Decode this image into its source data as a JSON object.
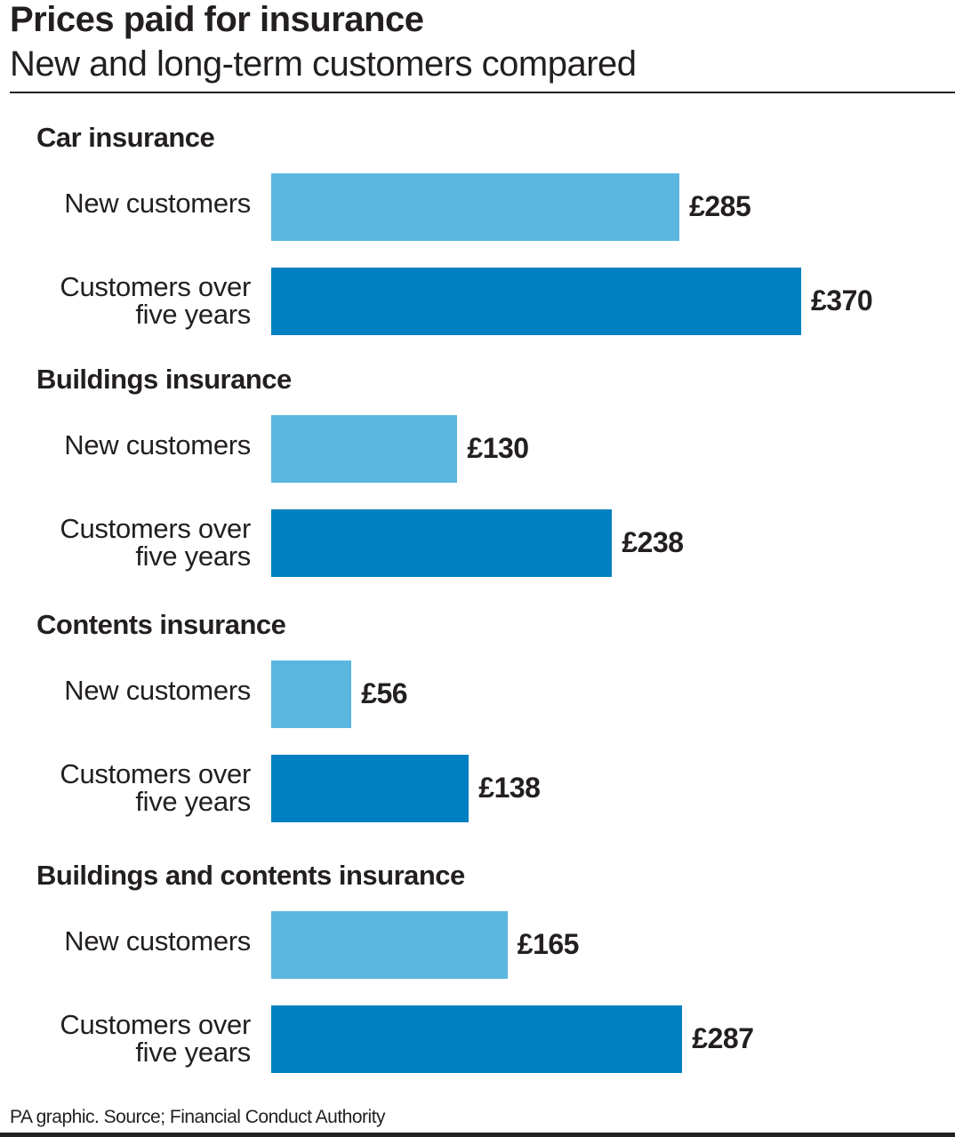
{
  "title": "Prices paid for insurance",
  "subtitle": "New and long-term customers compared",
  "footer": "PA graphic. Source; Financial Conduct Authority",
  "colors": {
    "new_customers": "#5ab6df",
    "customers_over_five_years": "#0080c0"
  },
  "chart_data": {
    "type": "bar",
    "orientation": "horizontal",
    "title": "Prices paid for insurance",
    "subtitle": "New and long-term customers compared",
    "unit": "£",
    "xlim": [
      0,
      370
    ],
    "grid": false,
    "groups": [
      {
        "name": "Car insurance",
        "bars": [
          {
            "label": "New customers",
            "value": 285,
            "value_label": "£285"
          },
          {
            "label": "Customers over five years",
            "value": 370,
            "value_label": "£370"
          }
        ]
      },
      {
        "name": "Buildings insurance",
        "bars": [
          {
            "label": "New customers",
            "value": 130,
            "value_label": "£130"
          },
          {
            "label": "Customers over five years",
            "value": 238,
            "value_label": "£238"
          }
        ]
      },
      {
        "name": "Contents insurance",
        "bars": [
          {
            "label": "New customers",
            "value": 56,
            "value_label": "£56"
          },
          {
            "label": "Customers over five years",
            "value": 138,
            "value_label": "£138"
          }
        ]
      },
      {
        "name": "Buildings and contents insurance",
        "bars": [
          {
            "label": "New customers",
            "value": 165,
            "value_label": "£165"
          },
          {
            "label": "Customers over five years",
            "value": 287,
            "value_label": "£287"
          }
        ]
      }
    ]
  }
}
